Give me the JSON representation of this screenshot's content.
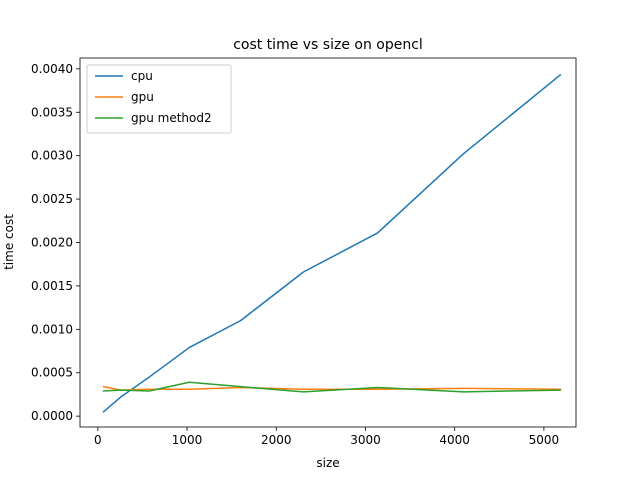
{
  "chart_data": {
    "type": "line",
    "title": "cost time vs size on opencl",
    "xlabel": "size",
    "ylabel": "time cost",
    "xlim": [
      -200,
      5360
    ],
    "ylim": [
      -0.000125,
      0.004125
    ],
    "xticks": [
      0,
      1000,
      2000,
      3000,
      4000,
      5000
    ],
    "xtick_labels": [
      "0",
      "1000",
      "2000",
      "3000",
      "4000",
      "5000"
    ],
    "yticks": [
      0.0,
      0.0005,
      0.001,
      0.0015,
      0.002,
      0.0025,
      0.003,
      0.0035,
      0.004
    ],
    "ytick_labels": [
      "0.0000",
      "0.0005",
      "0.0010",
      "0.0015",
      "0.0020",
      "0.0025",
      "0.0030",
      "0.0035",
      "0.0040"
    ],
    "grid": false,
    "legend_position": "top-left",
    "series": [
      {
        "name": "cpu",
        "color": "#1f77b4",
        "x": [
          64,
          256,
          576,
          1024,
          1600,
          2304,
          3136,
          4096,
          5184
        ],
        "y": [
          5e-05,
          0.00022,
          0.00045,
          0.00079,
          0.0011,
          0.00166,
          0.00211,
          0.00302,
          0.00393
        ]
      },
      {
        "name": "gpu",
        "color": "#ff7f0e",
        "x": [
          64,
          256,
          576,
          1024,
          1600,
          2304,
          3136,
          4096,
          5184
        ],
        "y": [
          0.00034,
          0.0003,
          0.00031,
          0.00031,
          0.00033,
          0.00031,
          0.00031,
          0.00032,
          0.00031
        ]
      },
      {
        "name": "gpu method2",
        "color": "#2ca02c",
        "x": [
          64,
          256,
          576,
          1024,
          1600,
          2304,
          3136,
          4096,
          5184
        ],
        "y": [
          0.00029,
          0.0003,
          0.00029,
          0.00039,
          0.00034,
          0.00028,
          0.00033,
          0.00028,
          0.0003
        ]
      }
    ]
  }
}
